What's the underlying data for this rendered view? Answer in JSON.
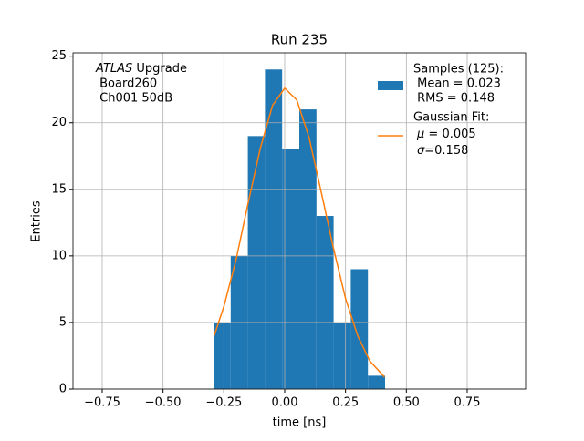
{
  "chart_data": {
    "type": "histogram",
    "title": "Run 235",
    "x_label": "time [ns]",
    "y_label": "Entries",
    "bins": [
      -0.2925,
      -0.222,
      -0.1515,
      -0.081,
      -0.0105,
      0.06,
      0.1305,
      0.201,
      0.2715,
      0.342,
      0.4125
    ],
    "counts": [
      5,
      10,
      19,
      24,
      18,
      21,
      13,
      5,
      9,
      1
    ],
    "color": "#1f77b4",
    "hist_legend": [
      "Samples (125):",
      " Mean = 0.023",
      " RMS = 0.148"
    ],
    "fit": {
      "type": "line",
      "color": "#ff7f0e",
      "x": [
        -0.29,
        -0.25,
        -0.2,
        -0.15,
        -0.1,
        -0.05,
        0,
        0.05,
        0.1,
        0.15,
        0.2,
        0.25,
        0.3,
        0.35,
        0.41
      ],
      "values": [
        4.0,
        6.2,
        9.7,
        14.0,
        18.1,
        21.3,
        22.6,
        21.7,
        18.9,
        14.8,
        10.6,
        6.8,
        4.0,
        2.1,
        0.9
      ],
      "legend": [
        "Gaussian Fit:",
        "μ",
        " = 0.005",
        "σ",
        "=0.158"
      ]
    },
    "annotation": {
      "italic": "ATLAS",
      "text": " Upgrade",
      "lines": [
        " Board260",
        " Ch001 50dB"
      ]
    },
    "xlim": [
      -0.87,
      0.99
    ],
    "ylim": [
      0,
      25.25
    ],
    "xticks": [
      {
        "value": -0.75,
        "label": "−0.75"
      },
      {
        "value": -0.5,
        "label": "−0.50"
      },
      {
        "value": -0.25,
        "label": "−0.25"
      },
      {
        "value": 0,
        "label": "0.00"
      },
      {
        "value": 0.25,
        "label": "0.25"
      },
      {
        "value": 0.5,
        "label": "0.50"
      },
      {
        "value": 0.75,
        "label": "0.75"
      }
    ],
    "yticks": [
      0,
      5,
      10,
      15,
      20,
      25
    ],
    "grid": true
  }
}
